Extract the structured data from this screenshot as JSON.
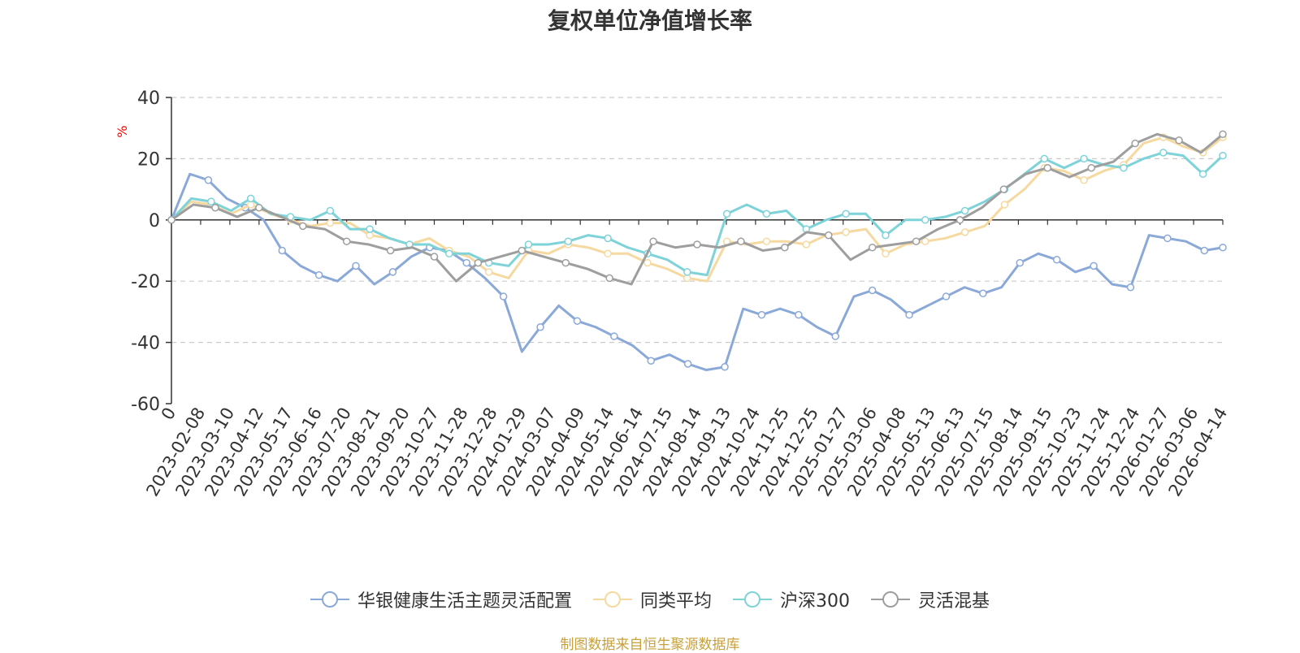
{
  "chart_data": {
    "type": "line",
    "title": "复权单位净值增长率",
    "ylabel": "%",
    "ylim": [
      -60,
      40
    ],
    "yticks": [
      40,
      20,
      0,
      -20,
      -40,
      -60
    ],
    "x_tick_labels": [
      "0",
      "2023-02-08",
      "2023-03-10",
      "2023-04-12",
      "2023-05-17",
      "2023-06-16",
      "2023-07-20",
      "2023-08-21",
      "2023-09-20",
      "2023-10-27",
      "2023-11-28",
      "2023-12-28",
      "2024-01-29",
      "2024-03-07",
      "2024-04-09",
      "2024-05-14",
      "2024-06-14",
      "2024-07-15",
      "2024-08-14",
      "2024-09-13",
      "2024-10-24",
      "2024-11-25",
      "2024-12-25",
      "2025-01-27",
      "2025-03-06",
      "2025-04-08",
      "2025-05-13",
      "2025-06-13",
      "2025-07-15",
      "2025-08-14",
      "2025-09-15",
      "2025-10-23",
      "2025-11-24",
      "2025-12-24",
      "2026-01-27",
      "2026-03-06",
      "2026-04-14"
    ],
    "grid": "horizontal-dashed",
    "legend_position": "bottom",
    "series": [
      {
        "name": "华银健康生活主题灵活配置",
        "color": "#8aa8d8",
        "values": [
          0,
          15,
          13,
          7,
          4,
          0,
          -10,
          -15,
          -18,
          -20,
          -15,
          -21,
          -17,
          -12,
          -9,
          -10,
          -14,
          -19,
          -25,
          -43,
          -35,
          -28,
          -33,
          -35,
          -38,
          -41,
          -46,
          -44,
          -47,
          -49,
          -48,
          -29,
          -31,
          -29,
          -31,
          -35,
          -38,
          -25,
          -23,
          -26,
          -31,
          -28,
          -25,
          -22,
          -24,
          -22,
          -14,
          -11,
          -13,
          -17,
          -15,
          -21,
          -22,
          -5,
          -6,
          -7,
          -10,
          -9
        ]
      },
      {
        "name": "同类平均",
        "color": "#f5d9a0",
        "values": [
          0,
          6,
          5,
          2,
          5,
          2,
          0,
          -2,
          -1,
          -1,
          -5,
          -6,
          -8,
          -6,
          -10,
          -12,
          -17,
          -19,
          -10,
          -11,
          -8,
          -9,
          -11,
          -11,
          -14,
          -16,
          -19,
          -20,
          -7,
          -8,
          -7,
          -7,
          -8,
          -5,
          -4,
          -3,
          -11,
          -8,
          -7,
          -6,
          -4,
          -2,
          5,
          10,
          17,
          16,
          13,
          16,
          18,
          25,
          27,
          24,
          22,
          27
        ]
      },
      {
        "name": "沪深300",
        "color": "#7ed3d8",
        "values": [
          0,
          7,
          6,
          3,
          7,
          2,
          1,
          0,
          3,
          -3,
          -3,
          -6,
          -8,
          -8,
          -11,
          -11,
          -14,
          -15,
          -8,
          -8,
          -7,
          -5,
          -6,
          -9,
          -11,
          -13,
          -17,
          -18,
          2,
          5,
          2,
          3,
          -3,
          0,
          2,
          2,
          -5,
          0,
          0,
          1,
          3,
          6,
          10,
          15,
          20,
          17,
          20,
          18,
          17,
          20,
          22,
          21,
          15,
          21
        ]
      },
      {
        "name": "灵活混基",
        "color": "#9e9e9e",
        "values": [
          0,
          5,
          4,
          1,
          4,
          1,
          -2,
          -3,
          -7,
          -8,
          -10,
          -9,
          -12,
          -20,
          -14,
          -12,
          -10,
          -12,
          -14,
          -16,
          -19,
          -21,
          -7,
          -9,
          -8,
          -9,
          -7,
          -10,
          -9,
          -4,
          -5,
          -13,
          -9,
          -8,
          -7,
          -3,
          0,
          4,
          10,
          15,
          17,
          14,
          17,
          19,
          25,
          28,
          26,
          22,
          28
        ]
      }
    ]
  },
  "source_note": "制图数据来自恒生聚源数据库"
}
